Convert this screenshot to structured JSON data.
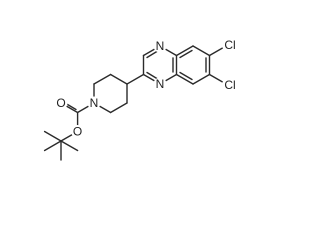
{
  "atom_labels": [
    "N",
    "N",
    "Cl",
    "Cl",
    "N",
    "O",
    "O"
  ]
}
